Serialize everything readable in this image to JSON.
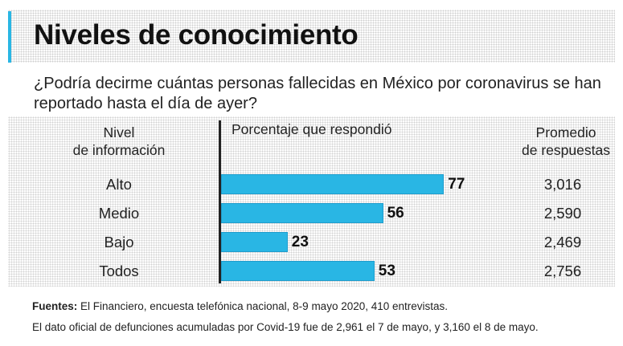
{
  "chart_data": {
    "type": "bar",
    "title": "Niveles de conocimiento",
    "subtitle": "¿Podría decirme cuántas personas fallecidas en México por coronavirus se han reportado hasta el día de ayer?",
    "column_headers": {
      "level": "Nivel de información",
      "percent": "Porcentaje que respondió",
      "average": "Promedio de respuestas"
    },
    "categories": [
      "Alto",
      "Medio",
      "Bajo",
      "Todos"
    ],
    "values": [
      77,
      56,
      23,
      53
    ],
    "averages": [
      "3,016",
      "2,590",
      "2,469",
      "2,756"
    ],
    "xlim": [
      0,
      100
    ],
    "bar_color": "#29b6e4"
  },
  "header": {
    "title": "Niveles de conocimiento",
    "question": "¿Podría decirme cuántas personas fallecidas en México por coronavirus se han reportado hasta el día de ayer?",
    "col_level_line1": "Nivel",
    "col_level_line2": "de información",
    "col_percent": "Porcentaje que respondió",
    "col_avg_line1": "Promedio",
    "col_avg_line2": "de respuestas"
  },
  "footer": {
    "source_label": "Fuentes:",
    "source_text": " El Financiero, encuesta telefónica nacional, 8-9 mayo 2020, 410 entrevistas.",
    "note": "El dato oficial de defunciones acumuladas por Covid-19 fue de 2,961 el 7 de mayo, y 3,160 el 8 de mayo."
  },
  "colors": {
    "accent": "#29b6e4",
    "text": "#222222"
  }
}
